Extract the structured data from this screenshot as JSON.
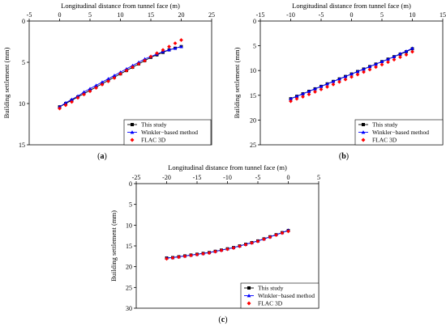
{
  "colors": {
    "this_study": "#000000",
    "winkler": "#0000ff",
    "flac": "#ff0000"
  },
  "chart_data": [
    {
      "type": "scatter",
      "panel_label": "a",
      "xlabel": "Longitudinal distance from tunnel face (m)",
      "ylabel": "Building settlement (mm)",
      "xlim": [
        -5,
        25
      ],
      "ylim": [
        15,
        0
      ],
      "xticks": [
        "-5",
        "0",
        "5",
        "10",
        "15",
        "20",
        "25"
      ],
      "yticks": [
        "0",
        "5",
        "10",
        "15"
      ],
      "x_axis_position": "top",
      "legend_position": "bottom-right",
      "series": [
        {
          "name": "This study",
          "marker": "square",
          "x": [
            0,
            1,
            2,
            3,
            4,
            5,
            6,
            7,
            8,
            9,
            10,
            11,
            12,
            13,
            14,
            15,
            16,
            17,
            18,
            19,
            20
          ],
          "y": [
            10.4,
            10.0,
            9.6,
            9.2,
            8.8,
            8.4,
            8.0,
            7.6,
            7.2,
            6.8,
            6.4,
            6.0,
            5.6,
            5.2,
            4.8,
            4.4,
            4.1,
            3.8,
            3.5,
            3.3,
            3.1
          ]
        },
        {
          "name": "Winkler−based method",
          "marker": "triangle",
          "x": [
            0,
            1,
            2,
            3,
            4,
            5,
            6,
            7,
            8,
            9,
            10,
            11,
            12,
            13,
            14,
            15,
            16,
            17,
            18,
            19,
            20
          ],
          "y": [
            10.4,
            9.9,
            9.5,
            9.1,
            8.6,
            8.2,
            7.8,
            7.4,
            7.0,
            6.6,
            6.2,
            5.8,
            5.4,
            5.0,
            4.6,
            4.3,
            4.0,
            3.7,
            3.5,
            3.3,
            3.1
          ]
        },
        {
          "name": "FLAC 3D",
          "marker": "diamond",
          "x": [
            0,
            1,
            2,
            3,
            4,
            5,
            6,
            7,
            8,
            9,
            10,
            11,
            12,
            13,
            14,
            15,
            16,
            17,
            18,
            19,
            20
          ],
          "y": [
            10.6,
            10.2,
            9.8,
            9.3,
            8.9,
            8.5,
            8.1,
            7.7,
            7.3,
            6.9,
            6.4,
            6.0,
            5.6,
            5.2,
            4.8,
            4.3,
            3.9,
            3.5,
            3.1,
            2.7,
            2.3
          ]
        }
      ]
    },
    {
      "type": "scatter",
      "panel_label": "b",
      "xlabel": "Longitudinal distance from tunnel face (m)",
      "ylabel": "Building settlement (mm)",
      "xlim": [
        -15,
        15
      ],
      "ylim": [
        25,
        0
      ],
      "xticks": [
        "-15",
        "-10",
        "-5",
        "0",
        "5",
        "10",
        "15"
      ],
      "yticks": [
        "0",
        "5",
        "10",
        "15",
        "20",
        "25"
      ],
      "x_axis_position": "top",
      "legend_position": "bottom-right",
      "series": [
        {
          "name": "This study",
          "marker": "square",
          "x": [
            -10,
            -9,
            -8,
            -7,
            -6,
            -5,
            -4,
            -3,
            -2,
            -1,
            0,
            1,
            2,
            3,
            4,
            5,
            6,
            7,
            8,
            9,
            10
          ],
          "y": [
            15.7,
            15.2,
            14.7,
            14.2,
            13.7,
            13.2,
            12.7,
            12.2,
            11.7,
            11.2,
            10.7,
            10.2,
            9.7,
            9.2,
            8.7,
            8.2,
            7.7,
            7.2,
            6.7,
            6.2,
            5.6
          ]
        },
        {
          "name": "Winkler−based method",
          "marker": "triangle",
          "x": [
            -10,
            -9,
            -8,
            -7,
            -6,
            -5,
            -4,
            -3,
            -2,
            -1,
            0,
            1,
            2,
            3,
            4,
            5,
            6,
            7,
            8,
            9,
            10
          ],
          "y": [
            15.7,
            15.2,
            14.7,
            14.2,
            13.7,
            13.2,
            12.7,
            12.2,
            11.7,
            11.2,
            10.7,
            10.2,
            9.7,
            9.2,
            8.7,
            8.2,
            7.7,
            7.2,
            6.6,
            6.1,
            5.5
          ]
        },
        {
          "name": "FLAC 3D",
          "marker": "diamond",
          "x": [
            -10,
            -9,
            -8,
            -7,
            -6,
            -5,
            -4,
            -3,
            -2,
            -1,
            0,
            1,
            2,
            3,
            4,
            5,
            6,
            7,
            8,
            9,
            10
          ],
          "y": [
            16.2,
            15.7,
            15.3,
            14.8,
            14.3,
            13.8,
            13.3,
            12.8,
            12.3,
            11.8,
            11.3,
            10.8,
            10.3,
            9.8,
            9.3,
            8.8,
            8.3,
            7.8,
            7.3,
            6.8,
            6.2
          ]
        }
      ]
    },
    {
      "type": "scatter",
      "panel_label": "c",
      "xlabel": "Longitudinal distance from tunnel face (m)",
      "ylabel": "Building settlement (mm)",
      "xlim": [
        -25,
        5
      ],
      "ylim": [
        30,
        0
      ],
      "xticks": [
        "-25",
        "-20",
        "-15",
        "-10",
        "-5",
        "0",
        "5"
      ],
      "yticks": [
        "0",
        "5",
        "10",
        "15",
        "20",
        "25",
        "30"
      ],
      "x_axis_position": "top",
      "legend_position": "bottom-right",
      "series": [
        {
          "name": "This study",
          "marker": "square",
          "x": [
            -20,
            -19,
            -18,
            -17,
            -16,
            -15,
            -14,
            -13,
            -12,
            -11,
            -10,
            -9,
            -8,
            -7,
            -6,
            -5,
            -4,
            -3,
            -2,
            -1,
            0
          ],
          "y": [
            17.9,
            17.8,
            17.6,
            17.4,
            17.2,
            17.0,
            16.8,
            16.6,
            16.3,
            16.0,
            15.7,
            15.4,
            15.0,
            14.6,
            14.2,
            13.8,
            13.3,
            12.8,
            12.3,
            11.8,
            11.3
          ]
        },
        {
          "name": "Winkler−based method",
          "marker": "triangle",
          "x": [
            -20,
            -19,
            -18,
            -17,
            -16,
            -15,
            -14,
            -13,
            -12,
            -11,
            -10,
            -9,
            -8,
            -7,
            -6,
            -5,
            -4,
            -3,
            -2,
            -1,
            0
          ],
          "y": [
            17.9,
            17.8,
            17.6,
            17.4,
            17.2,
            17.0,
            16.8,
            16.6,
            16.3,
            16.0,
            15.7,
            15.4,
            15.0,
            14.6,
            14.2,
            13.8,
            13.3,
            12.8,
            12.3,
            11.8,
            11.2
          ]
        },
        {
          "name": "FLAC 3D",
          "marker": "diamond",
          "x": [
            -20,
            -19,
            -18,
            -17,
            -16,
            -15,
            -14,
            -13,
            -12,
            -11,
            -10,
            -9,
            -8,
            -7,
            -6,
            -5,
            -4,
            -3,
            -2,
            -1,
            0
          ],
          "y": [
            18.1,
            17.9,
            17.7,
            17.5,
            17.3,
            17.1,
            16.9,
            16.7,
            16.4,
            16.1,
            15.8,
            15.5,
            15.1,
            14.7,
            14.3,
            13.9,
            13.4,
            12.9,
            12.4,
            11.9,
            11.5
          ]
        }
      ]
    }
  ]
}
